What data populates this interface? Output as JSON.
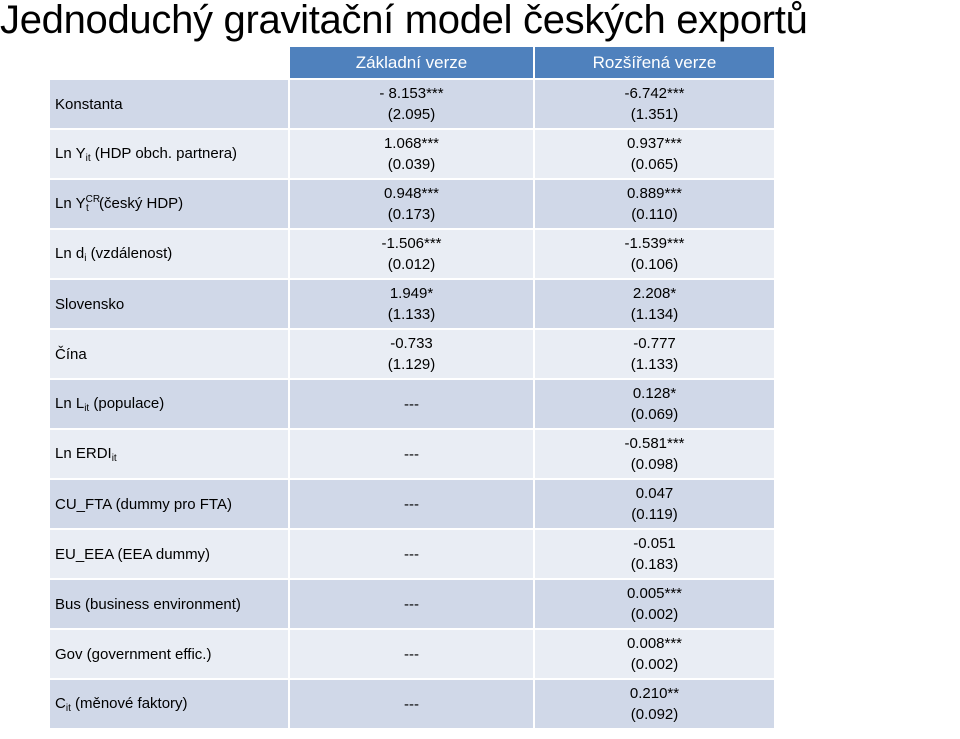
{
  "title": "Jednoduchý gravitační model českých exportů",
  "columns": {
    "basic": "Základní verze",
    "extended": "Rozšířená verze"
  },
  "rows": [
    {
      "label": "Konstanta",
      "basic": {
        "coef": "- 8.153***",
        "se": "(2.095)"
      },
      "extended": {
        "coef": "-6.742***",
        "se": "(1.351)"
      }
    },
    {
      "label_base": "Ln Y",
      "label_sub": "it",
      "label_rest": " (HDP obch. partnera)",
      "basic": {
        "coef": "1.068***",
        "se": "(0.039)"
      },
      "extended": {
        "coef": "0.937***",
        "se": "(0.065)"
      }
    },
    {
      "label_base": "Ln Y",
      "label_sup": "CR",
      "label_sub": "t",
      "label_rest": " (český HDP)",
      "basic": {
        "coef": "0.948***",
        "se": "(0.173)"
      },
      "extended": {
        "coef": "0.889***",
        "se": "(0.110)"
      }
    },
    {
      "label_base": "Ln d",
      "label_sub": "i",
      "label_rest": " (vzdálenost)",
      "basic": {
        "coef": "-1.506***",
        "se": "(0.012)"
      },
      "extended": {
        "coef": "-1.539***",
        "se": "(0.106)"
      }
    },
    {
      "label": "Slovensko",
      "basic": {
        "coef": "1.949*",
        "se": "(1.133)"
      },
      "extended": {
        "coef": "2.208*",
        "se": "(1.134)"
      }
    },
    {
      "label": "Čína",
      "basic": {
        "coef": "-0.733",
        "se": "(1.129)"
      },
      "extended": {
        "coef": "-0.777",
        "se": "(1.133)"
      }
    },
    {
      "label_base": "Ln L",
      "label_sub": "it",
      "label_rest": " (populace)",
      "basic_dash": "---",
      "extended": {
        "coef": "0.128*",
        "se": "(0.069)"
      }
    },
    {
      "label_base": "Ln ERDI",
      "label_sub": "it",
      "label_rest": "",
      "basic_dash": "---",
      "extended": {
        "coef": "-0.581***",
        "se": "(0.098)"
      }
    },
    {
      "label": "CU_FTA (dummy pro FTA)",
      "basic_dash": "---",
      "extended": {
        "coef": "0.047",
        "se": "(0.119)"
      }
    },
    {
      "label": "EU_EEA (EEA dummy)",
      "basic_dash": "---",
      "extended": {
        "coef": "-0.051",
        "se": "(0.183)"
      }
    },
    {
      "label": "Bus (business environment)",
      "basic_dash": "---",
      "extended": {
        "coef": "0.005***",
        "se": "(0.002)"
      }
    },
    {
      "label": "Gov (government effic.)",
      "basic_dash": "---",
      "extended": {
        "coef": "0.008***",
        "se": "(0.002)"
      }
    },
    {
      "label_base": "C",
      "label_sub": "it",
      "label_rest": " (měnové faktory)",
      "basic_dash": "---",
      "extended": {
        "coef": "0.210**",
        "se": "(0.092)"
      }
    }
  ],
  "colors": {
    "header": "#4f81bd",
    "row_odd": "#d0d8e8",
    "row_even": "#e9edf4"
  }
}
